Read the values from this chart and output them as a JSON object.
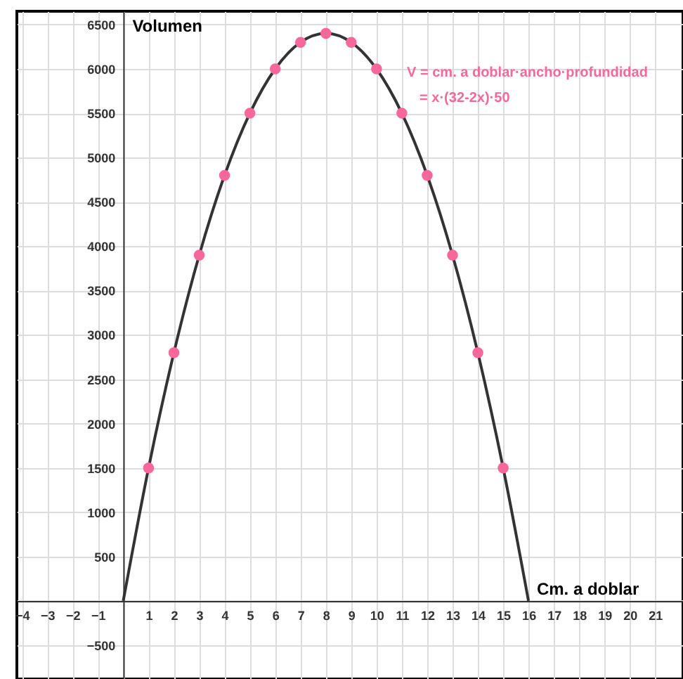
{
  "chart_data": {
    "type": "line",
    "xlabel": "Cm. a doblar",
    "ylabel": "Volumen",
    "annotations": [
      "V = cm. a doblar·ancho·profundidad",
      "= x·(32-2x)·50"
    ],
    "series": [
      {
        "color": "#333333",
        "marker": "none",
        "x": [
          0,
          1,
          2,
          3,
          4,
          5,
          6,
          7,
          8,
          9,
          10,
          11,
          12,
          13,
          14,
          15,
          16
        ],
        "values": [
          0,
          1500,
          2800,
          3900,
          4800,
          5500,
          6000,
          6300,
          6400,
          6300,
          6000,
          5500,
          4800,
          3900,
          2800,
          1500,
          0
        ]
      },
      {
        "type": "scatter",
        "color": "#f7679b",
        "marker": "circle",
        "x": [
          1,
          2,
          3,
          4,
          5,
          6,
          7,
          8,
          9,
          10,
          11,
          12,
          13,
          14,
          15
        ],
        "values": [
          1500,
          2800,
          3900,
          4800,
          5500,
          6000,
          6300,
          6400,
          6300,
          6000,
          5500,
          4800,
          3900,
          2800,
          1500
        ]
      }
    ],
    "xlim": [
      -4.2,
      22.1
    ],
    "ylim": [
      -880,
      6650
    ],
    "xticks": [
      {
        "value": -4,
        "label": "−4"
      },
      {
        "value": -3,
        "label": "−3"
      },
      {
        "value": -2,
        "label": "−2"
      },
      {
        "value": -1,
        "label": "−1"
      },
      {
        "value": 0,
        "label": null
      },
      1,
      2,
      3,
      4,
      5,
      6,
      7,
      8,
      9,
      10,
      11,
      12,
      13,
      14,
      15,
      16,
      17,
      18,
      19,
      20,
      21
    ],
    "yticks": [
      {
        "value": -500,
        "label": "−500"
      },
      {
        "value": 0,
        "label": null
      },
      500,
      1000,
      1500,
      2000,
      2500,
      3000,
      3500,
      4000,
      4500,
      5000,
      5500,
      6000,
      6500
    ],
    "grid": true
  }
}
